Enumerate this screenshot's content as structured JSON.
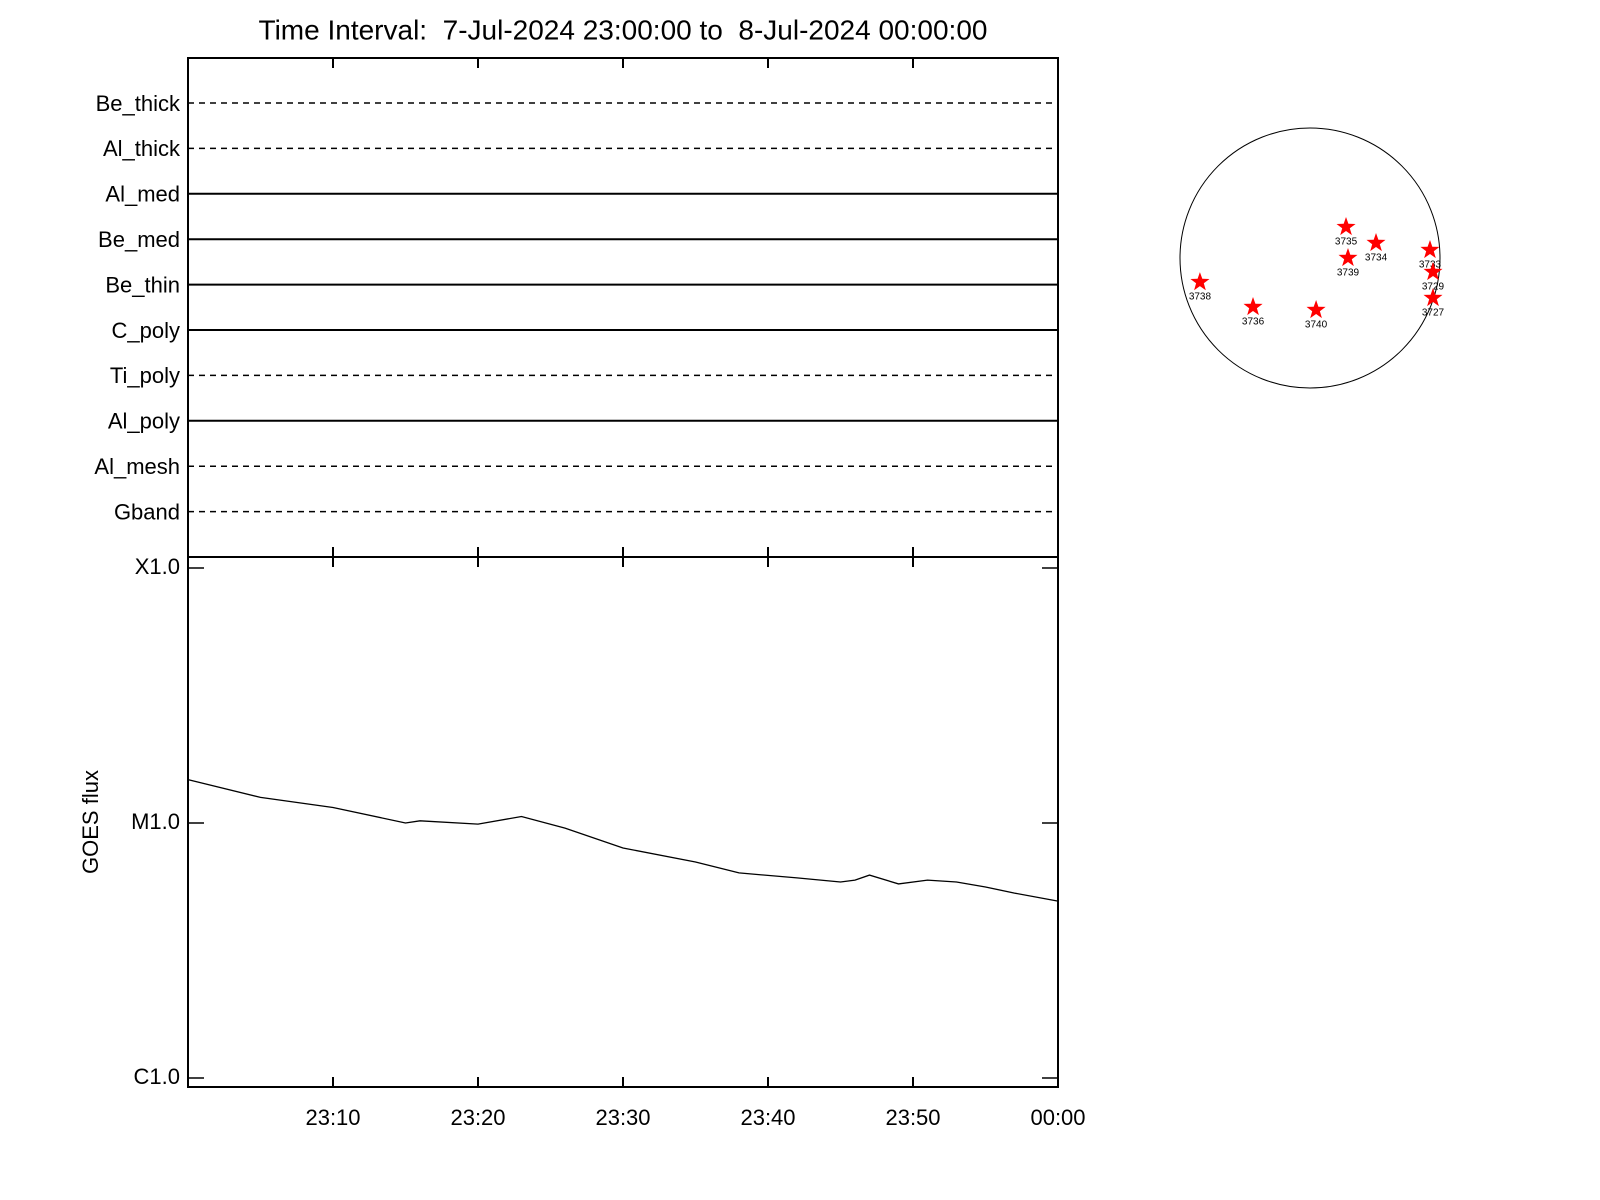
{
  "chart_data": [
    {
      "type": "filter-timeline",
      "title": "Time Interval:  7-Jul-2024 23:00:00 to  8-Jul-2024 00:00:00",
      "filters": [
        {
          "name": "Be_thick",
          "style": "dashed"
        },
        {
          "name": "Al_thick",
          "style": "dashed"
        },
        {
          "name": "Al_med",
          "style": "solid"
        },
        {
          "name": "Be_med",
          "style": "solid"
        },
        {
          "name": "Be_thin",
          "style": "solid"
        },
        {
          "name": "C_poly",
          "style": "solid"
        },
        {
          "name": "Ti_poly",
          "style": "dashed"
        },
        {
          "name": "Al_poly",
          "style": "solid"
        },
        {
          "name": "Al_mesh",
          "style": "dashed"
        },
        {
          "name": "Gband",
          "style": "dashed"
        }
      ]
    },
    {
      "type": "line",
      "ylabel": "GOES flux",
      "log_scale": true,
      "color": "#000000",
      "xlim": [
        "23:00",
        "00:00"
      ],
      "xticks": [
        "23:10",
        "23:20",
        "23:30",
        "23:40",
        "23:50",
        "00:00"
      ],
      "ylim": [
        1e-06,
        0.0001
      ],
      "yticks": [
        {
          "value": 0.0001,
          "label": "X1.0"
        },
        {
          "value": 1e-05,
          "label": "M1.0"
        },
        {
          "value": 1e-06,
          "label": "C1.0"
        }
      ],
      "x": [
        "23:00",
        "23:05",
        "23:10",
        "23:15",
        "23:16",
        "23:20",
        "23:23",
        "23:26",
        "23:30",
        "23:35",
        "23:38",
        "23:42",
        "23:45",
        "23:46",
        "23:47",
        "23:49",
        "23:51",
        "23:53",
        "23:55",
        "23:57",
        "00:00"
      ],
      "values": [
        1.48e-05,
        1.26e-05,
        1.15e-05,
        1e-05,
        1.02e-05,
        9.9e-06,
        1.06e-05,
        9.55e-06,
        7.98e-06,
        7.03e-06,
        6.37e-06,
        6.09e-06,
        5.87e-06,
        5.97e-06,
        6.25e-06,
        5.77e-06,
        5.97e-06,
        5.87e-06,
        5.61e-06,
        5.31e-06,
        4.94e-06
      ]
    },
    {
      "type": "scatter",
      "color": "#ff0000",
      "xlim": [
        -945,
        945
      ],
      "ylim": [
        -945,
        945
      ],
      "labels": [
        "3738",
        "3736",
        "3740",
        "3735",
        "3739",
        "3734",
        "3733",
        "3729",
        "3727"
      ],
      "x": [
        -800,
        -414,
        44,
        262,
        276,
        480,
        872,
        894,
        894
      ],
      "values": [
        -175,
        -356,
        -378,
        225,
        0,
        109,
        58,
        -102,
        -291
      ]
    }
  ]
}
